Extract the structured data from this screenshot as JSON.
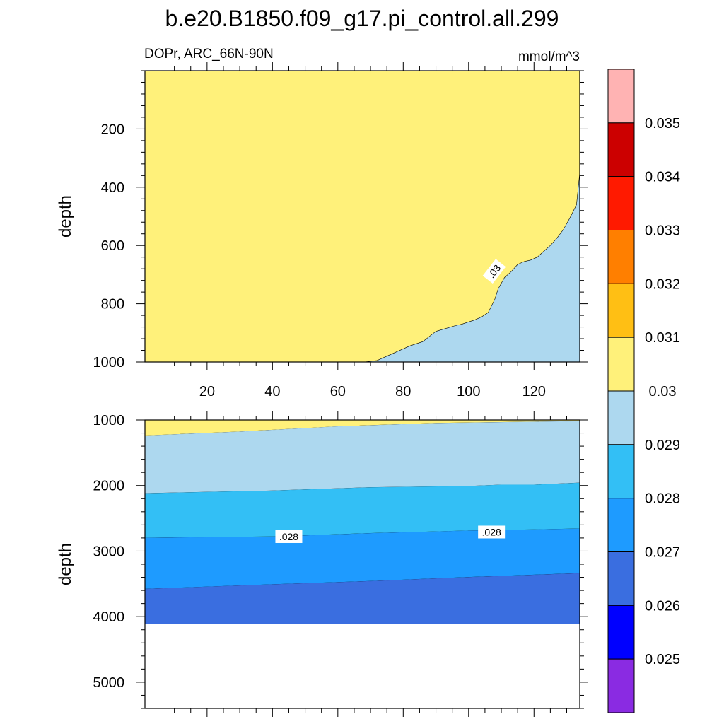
{
  "title": "b.e20.B1850.f09_g17.pi_control.all.299",
  "variable_label": "DOPr, ARC_66N-90N",
  "units": "mmol/m^3",
  "chart_data": [
    {
      "type": "heatmap",
      "panel": "upper",
      "ylabel": "depth",
      "xlabel": "",
      "x_range": [
        1,
        134
      ],
      "y_range": [
        0,
        1000
      ],
      "y_reversed": true,
      "x_ticks": [
        20,
        40,
        60,
        80,
        100,
        120
      ],
      "y_ticks": [
        200,
        400,
        600,
        800,
        1000
      ],
      "background_level": "0.03-0.031",
      "regions": [
        {
          "level": "0.029-0.03",
          "boundary": [
            [
              68,
              1000
            ],
            [
              72,
              995
            ],
            [
              76,
              975
            ],
            [
              82,
              945
            ],
            [
              86,
              930
            ],
            [
              90,
              895
            ],
            [
              96,
              875
            ],
            [
              98,
              870
            ],
            [
              102,
              855
            ],
            [
              104,
              845
            ],
            [
              106,
              830
            ],
            [
              108,
              785
            ],
            [
              109,
              750
            ],
            [
              111,
              710
            ],
            [
              113,
              690
            ],
            [
              115,
              665
            ],
            [
              117,
              655
            ],
            [
              119,
              650
            ],
            [
              121,
              640
            ],
            [
              123,
              620
            ],
            [
              125,
              600
            ],
            [
              127,
              575
            ],
            [
              129,
              545
            ],
            [
              131,
              505
            ],
            [
              133,
              460
            ],
            [
              134,
              350
            ],
            [
              134,
              1000
            ]
          ]
        }
      ],
      "contour_labels": [
        {
          "text": ".03",
          "x": 108,
          "y": 690
        }
      ]
    },
    {
      "type": "heatmap",
      "panel": "lower",
      "ylabel": "depth",
      "xlabel": "",
      "x_range": [
        1,
        134
      ],
      "y_range": [
        1000,
        5400
      ],
      "y_reversed": true,
      "y_ticks": [
        1000,
        2000,
        3000,
        4000,
        5000
      ],
      "bottom_of_data": 4110,
      "bands": [
        {
          "level": "0.03-0.031",
          "top": [
            [
              1,
              1000
            ],
            [
              134,
              1000
            ]
          ],
          "bottom": [
            [
              1,
              1240
            ],
            [
              30,
              1180
            ],
            [
              60,
              1100
            ],
            [
              90,
              1050
            ],
            [
              134,
              1020
            ]
          ]
        },
        {
          "level": "0.029-0.03",
          "top": [
            [
              1,
              1240
            ],
            [
              30,
              1180
            ],
            [
              60,
              1100
            ],
            [
              90,
              1050
            ],
            [
              134,
              1020
            ]
          ],
          "bottom": [
            [
              1,
              2120
            ],
            [
              40,
              2080
            ],
            [
              70,
              2030
            ],
            [
              100,
              2010
            ],
            [
              110,
              1990
            ],
            [
              120,
              1990
            ],
            [
              134,
              1960
            ]
          ]
        },
        {
          "level": "0.028-0.029",
          "top": [
            [
              1,
              2120
            ],
            [
              40,
              2080
            ],
            [
              70,
              2030
            ],
            [
              100,
              2010
            ],
            [
              110,
              1990
            ],
            [
              120,
              1990
            ],
            [
              134,
              1960
            ]
          ],
          "bottom": [
            [
              1,
              2800
            ],
            [
              40,
              2780
            ],
            [
              70,
              2730
            ],
            [
              100,
              2690
            ],
            [
              134,
              2660
            ]
          ]
        },
        {
          "level": "0.027-0.028",
          "top": [
            [
              1,
              2800
            ],
            [
              40,
              2780
            ],
            [
              70,
              2730
            ],
            [
              100,
              2690
            ],
            [
              134,
              2660
            ]
          ],
          "bottom": [
            [
              1,
              3580
            ],
            [
              40,
              3510
            ],
            [
              70,
              3460
            ],
            [
              100,
              3400
            ],
            [
              134,
              3340
            ]
          ]
        },
        {
          "level": "0.026-0.027",
          "top": [
            [
              1,
              3580
            ],
            [
              40,
              3510
            ],
            [
              70,
              3460
            ],
            [
              100,
              3400
            ],
            [
              134,
              3340
            ]
          ],
          "bottom": [
            [
              1,
              4110
            ],
            [
              134,
              4110
            ]
          ]
        }
      ],
      "contour_labels": [
        {
          "text": ".028",
          "x": 45,
          "y": 2790
        },
        {
          "text": ".028",
          "x": 107,
          "y": 2720
        }
      ]
    }
  ],
  "colorbar": {
    "labels": [
      "0.025",
      "0.026",
      "0.027",
      "0.028",
      "0.029",
      "0.03",
      "0.031",
      "0.032",
      "0.033",
      "0.034",
      "0.035"
    ],
    "colors": [
      "#8a2be2",
      "#0000ff",
      "#3a6ee0",
      "#1e9bff",
      "#33bff5",
      "#add8ef",
      "#fff17a",
      "#ffbf14",
      "#ff7f00",
      "#ff1a00",
      "#cc0000",
      "#ffb3b3"
    ]
  },
  "level_colors": {
    "0.026-0.027": "#3a6ee0",
    "0.027-0.028": "#1e9bff",
    "0.028-0.029": "#33bff5",
    "0.029-0.03": "#add8ef",
    "0.03-0.031": "#fff17a"
  }
}
